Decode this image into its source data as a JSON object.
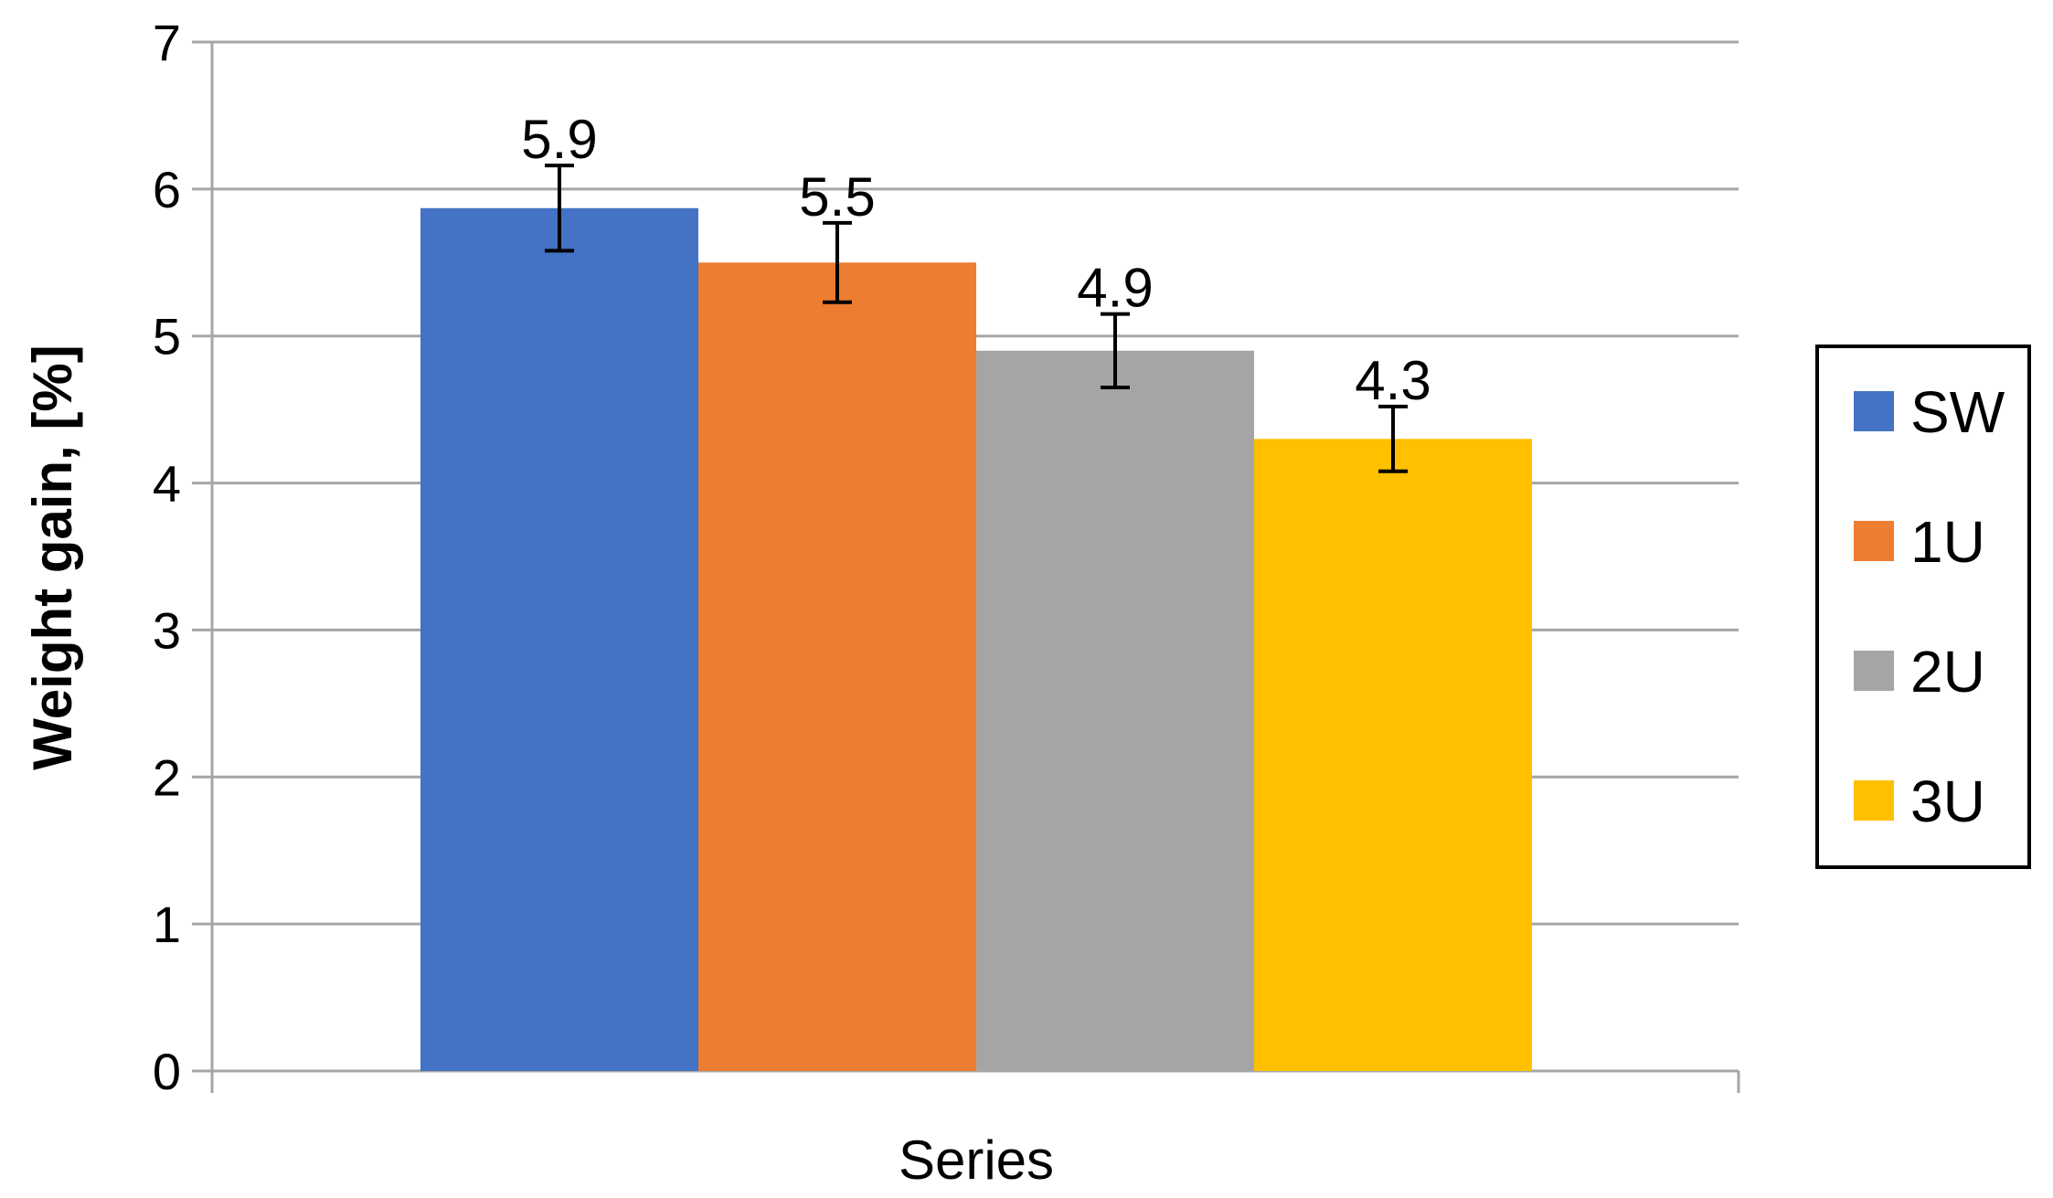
{
  "chart_data": {
    "type": "bar",
    "title": "",
    "xlabel": "Series",
    "ylabel": "Weight gain, [%]",
    "ylim": [
      0,
      7
    ],
    "yticks": [
      0,
      1,
      2,
      3,
      4,
      5,
      6,
      7
    ],
    "grid": true,
    "legend_position": "right",
    "series": [
      {
        "name": "SW",
        "value": 5.87,
        "label": "5.9",
        "error": 0.29,
        "color": "#4472C4"
      },
      {
        "name": "1U",
        "value": 5.5,
        "label": "5.5",
        "error": 0.27,
        "color": "#ED7D31"
      },
      {
        "name": "2U",
        "value": 4.9,
        "label": "4.9",
        "error": 0.25,
        "color": "#A5A5A5"
      },
      {
        "name": "3U",
        "value": 4.3,
        "label": "4.3",
        "error": 0.22,
        "color": "#FFC000"
      }
    ]
  }
}
